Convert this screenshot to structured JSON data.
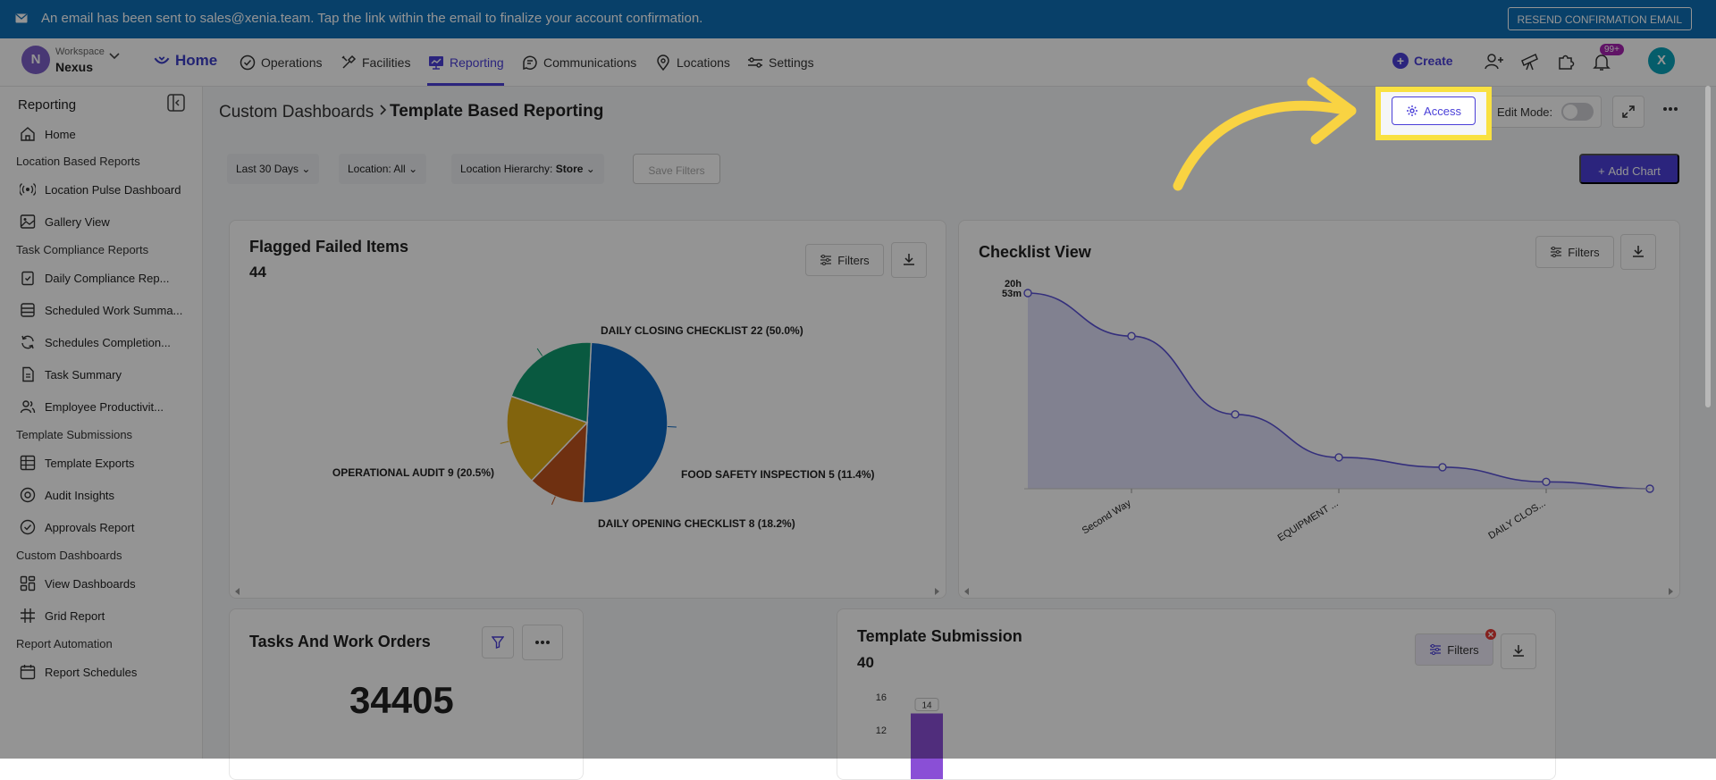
{
  "banner": {
    "message": "An email has been sent to sales@xenia.team. Tap the link within the email to finalize your account confirmation.",
    "resend_label": "RESEND CONFIRMATION EMAIL"
  },
  "workspace": {
    "initial": "N",
    "label": "Workspace",
    "name": "Nexus"
  },
  "nav": {
    "home": "Home",
    "items": [
      "Operations",
      "Facilities",
      "Reporting",
      "Communications",
      "Locations",
      "Settings"
    ],
    "create": "Create",
    "notif_badge": "99+",
    "user_initial": "X"
  },
  "sidebar": {
    "title": "Reporting",
    "home": "Home",
    "sections": [
      {
        "title": "Location Based Reports",
        "items": [
          "Location Pulse Dashboard",
          "Gallery View"
        ]
      },
      {
        "title": "Task Compliance Reports",
        "items": [
          "Daily Compliance Rep...",
          "Scheduled Work Summa...",
          "Schedules Completion...",
          "Task Summary",
          "Employee Productivit..."
        ]
      },
      {
        "title": "Template Submissions",
        "items": [
          "Template Exports",
          "Audit Insights",
          "Approvals Report"
        ]
      },
      {
        "title": "Custom Dashboards",
        "items": [
          "View Dashboards",
          "Grid Report"
        ]
      },
      {
        "title": "Report Automation",
        "items": [
          "Report Schedules"
        ]
      }
    ]
  },
  "header": {
    "breadcrumb_parent": "Custom Dashboards",
    "breadcrumb_current": "Template Based Reporting",
    "access_label": "Access",
    "edit_mode_label": "Edit Mode:"
  },
  "filters": {
    "date": "Last 30 Days",
    "location": "Location: All",
    "hierarchy_label": "Location Hierarchy:",
    "hierarchy_value": "Store",
    "save": "Save Filters",
    "add_chart": "Add Chart"
  },
  "cards": {
    "flagged": {
      "title": "Flagged Failed Items",
      "count": "44",
      "filters_label": "Filters"
    },
    "checklist": {
      "title": "Checklist View",
      "filters_label": "Filters"
    },
    "tasks": {
      "title": "Tasks And Work Orders",
      "value": "34405"
    },
    "template": {
      "title": "Template Submission",
      "count": "40",
      "filters_label": "Filters"
    }
  },
  "chart_data": [
    {
      "type": "pie",
      "title": "Flagged Failed Items",
      "slices": [
        {
          "label": "DAILY CLOSING CHECKLIST 22 (50.0%)",
          "value": 22,
          "color": "#0a66c2"
        },
        {
          "label": "FOOD SAFETY INSPECTION 5 (11.4%)",
          "value": 5,
          "color": "#c0541e"
        },
        {
          "label": "DAILY OPENING CHECKLIST 8 (18.2%)",
          "value": 8,
          "color": "#e0ac18"
        },
        {
          "label": "OPERATIONAL AUDIT 9 (20.5%)",
          "value": 9,
          "color": "#109a6e"
        }
      ]
    },
    {
      "type": "area",
      "title": "Checklist View",
      "y_tick_labels": [
        "20h",
        "53m"
      ],
      "x_tick_labels": [
        "Second Way",
        "EQUIPMENT ...",
        "DAILY CLOS..."
      ],
      "values": [
        1.0,
        0.78,
        0.38,
        0.16,
        0.11,
        0.035,
        0.0
      ],
      "color": "#8c8cf0"
    },
    {
      "type": "bar",
      "title": "Template Submission",
      "y_ticks": [
        16,
        12
      ],
      "values": [
        14
      ],
      "color": "#8a4fd6"
    }
  ]
}
